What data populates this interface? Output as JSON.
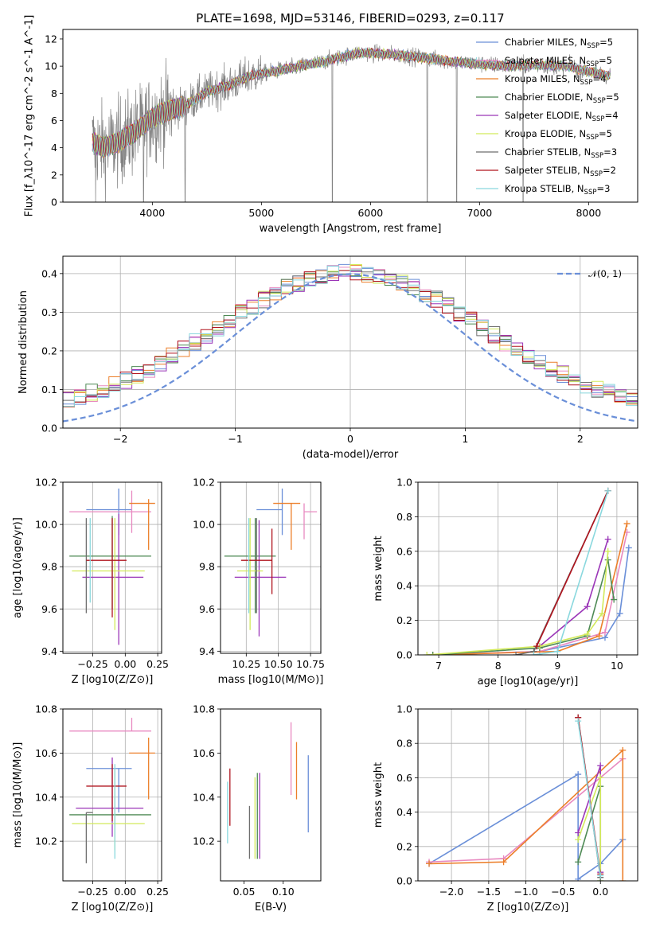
{
  "figure": {
    "title": "PLATE=1698, MJD=53146, FIBERID=0293, z=0.117"
  },
  "models": [
    {
      "name": "Chabrier MILES",
      "n": "5",
      "color": "#6a8fd8"
    },
    {
      "name": "Salpeter MILES",
      "n": "5",
      "color": "#e889c0"
    },
    {
      "name": "Kroupa MILES",
      "n": "4",
      "color": "#ec7f2a"
    },
    {
      "name": "Chabrier ELODIE",
      "n": "5",
      "color": "#4e8a55"
    },
    {
      "name": "Salpeter ELODIE",
      "n": "4",
      "color": "#9b36b8"
    },
    {
      "name": "Kroupa ELODIE",
      "n": "5",
      "color": "#d2ea5a"
    },
    {
      "name": "Chabrier STELIB",
      "n": "3",
      "color": "#6e6e6e"
    },
    {
      "name": "Salpeter STELIB",
      "n": "2",
      "color": "#b0141e"
    },
    {
      "name": "Kroupa STELIB",
      "n": "3",
      "color": "#8ad8de"
    }
  ],
  "chart_data": [
    {
      "id": "spectrum",
      "type": "line",
      "xlabel": "wavelength [Angstrom, rest frame]",
      "ylabel": "Flux [f_λ10^-17 erg cm^-2 s^-1 A^-1]",
      "xlim": [
        3180,
        8450
      ],
      "ylim": [
        0,
        12.7
      ],
      "xticks": [
        4000,
        5000,
        6000,
        7000,
        8000
      ],
      "yticks": [
        0,
        2,
        4,
        6,
        8,
        10,
        12
      ],
      "grid": false,
      "legend": "right",
      "data_range_x": [
        3450,
        8200
      ],
      "continuum_points": [
        [
          3450,
          4.4
        ],
        [
          3550,
          4.0
        ],
        [
          3650,
          4.3
        ],
        [
          3720,
          4.6
        ],
        [
          3850,
          5.2
        ],
        [
          4000,
          6.2
        ],
        [
          4100,
          6.6
        ],
        [
          4300,
          7.1
        ],
        [
          4500,
          8.1
        ],
        [
          4700,
          8.6
        ],
        [
          4900,
          9.3
        ],
        [
          5100,
          9.6
        ],
        [
          5300,
          9.9
        ],
        [
          5500,
          10.2
        ],
        [
          5700,
          10.6
        ],
        [
          5900,
          11.0
        ],
        [
          6100,
          10.9
        ],
        [
          6300,
          10.8
        ],
        [
          6500,
          10.6
        ],
        [
          6700,
          10.4
        ],
        [
          6900,
          10.2
        ],
        [
          7100,
          10.1
        ],
        [
          7300,
          10.0
        ],
        [
          7500,
          10.1
        ],
        [
          7800,
          10.0
        ],
        [
          8000,
          9.6
        ],
        [
          8200,
          9.3
        ]
      ],
      "strong_absorption_x": [
        3480,
        3920,
        4300,
        5650,
        6520,
        6790,
        7400
      ],
      "data_color": "#808080"
    },
    {
      "id": "residuals",
      "type": "histogram",
      "xlabel": "(data-model)/error",
      "ylabel": "Normed distribution",
      "xlim": [
        -2.5,
        2.5
      ],
      "ylim": [
        0,
        0.445
      ],
      "xticks": [
        -2,
        -1,
        0,
        1,
        2
      ],
      "yticks": [
        0.0,
        0.1,
        0.2,
        0.3,
        0.4
      ],
      "grid": true,
      "legend": "top-right",
      "reference_curve": {
        "label": "𝒩(0, 1)",
        "mean": 0,
        "sigma": 1,
        "color": "#6a8fd8"
      },
      "bin_width": 0.1
    },
    {
      "id": "age-vs-Z",
      "type": "errorbar",
      "xlabel": "Z [log10(Z/Z⊙)]",
      "ylabel": "age [log10(age/yr)]",
      "xlim": [
        -0.48,
        0.28
      ],
      "ylim": [
        9.39,
        10.2
      ],
      "xticks": [
        -0.25,
        0.0,
        0.25
      ],
      "yticks": [
        9.4,
        9.6,
        9.8,
        10.0,
        10.2
      ],
      "grid": true,
      "points": [
        {
          "model": "Chabrier MILES",
          "x": -0.05,
          "xerr": [
            0.25,
            0.1
          ],
          "y": 10.07,
          "yerr": [
            0.12,
            0.1
          ]
        },
        {
          "model": "Salpeter MILES",
          "x": 0.05,
          "xerr": [
            0.48,
            0.15
          ],
          "y": 10.06,
          "yerr": [
            0.1,
            0.1
          ]
        },
        {
          "model": "Kroupa MILES",
          "x": 0.18,
          "xerr": [
            0.15,
            0.05
          ],
          "y": 10.1,
          "yerr": [
            0.22,
            0.02
          ]
        },
        {
          "model": "Chabrier ELODIE",
          "x": -0.1,
          "xerr": [
            0.33,
            0.3
          ],
          "y": 9.85,
          "yerr": [
            0.25,
            0.19
          ]
        },
        {
          "model": "Salpeter ELODIE",
          "x": -0.05,
          "xerr": [
            0.28,
            0.19
          ],
          "y": 9.75,
          "yerr": [
            0.32,
            0.3
          ]
        },
        {
          "model": "Kroupa ELODIE",
          "x": -0.08,
          "xerr": [
            0.33,
            0.23
          ],
          "y": 9.78,
          "yerr": [
            0.28,
            0.25
          ]
        },
        {
          "model": "Chabrier STELIB",
          "x": -0.3,
          "xerr": [
            0.0,
            0.0
          ],
          "y": 9.78,
          "yerr": [
            0.2,
            0.25
          ]
        },
        {
          "model": "Salpeter STELIB",
          "x": -0.1,
          "xerr": [
            0.2,
            0.11
          ],
          "y": 9.83,
          "yerr": [
            0.27,
            0.2
          ]
        },
        {
          "model": "Kroupa STELIB",
          "x": -0.27,
          "xerr": [
            0.0,
            0.0
          ],
          "y": 9.93,
          "yerr": [
            0.3,
            0.1
          ]
        }
      ]
    },
    {
      "id": "age-vs-mass",
      "type": "errorbar",
      "xlabel": "mass [log10(M/M⊙)]",
      "ylabel": "",
      "xlim": [
        10.05,
        10.83
      ],
      "ylim": [
        9.39,
        10.2
      ],
      "xticks": [
        10.25,
        10.5,
        10.75
      ],
      "yticks": [
        9.4,
        9.6,
        9.8,
        10.0,
        10.2
      ],
      "grid": true,
      "points": [
        {
          "model": "Chabrier MILES",
          "x": 10.53,
          "xerr": [
            0.2,
            0.0
          ],
          "y": 10.07,
          "yerr": [
            0.12,
            0.1
          ]
        },
        {
          "model": "Salpeter MILES",
          "x": 10.7,
          "xerr": [
            0.0,
            0.1
          ],
          "y": 10.06,
          "yerr": [
            0.13,
            0.04
          ]
        },
        {
          "model": "Kroupa MILES",
          "x": 10.6,
          "xerr": [
            0.14,
            0.07
          ],
          "y": 10.1,
          "yerr": [
            0.22,
            0.0
          ]
        },
        {
          "model": "Chabrier ELODIE",
          "x": 10.32,
          "xerr": [
            0.24,
            0.16
          ],
          "y": 9.85,
          "yerr": [
            0.27,
            0.18
          ]
        },
        {
          "model": "Salpeter ELODIE",
          "x": 10.35,
          "xerr": [
            0.19,
            0.21
          ],
          "y": 9.75,
          "yerr": [
            0.28,
            0.27
          ]
        },
        {
          "model": "Kroupa ELODIE",
          "x": 10.28,
          "xerr": [
            0.1,
            0.1
          ],
          "y": 9.78,
          "yerr": [
            0.28,
            0.25
          ]
        },
        {
          "model": "Chabrier STELIB",
          "x": 10.33,
          "xerr": [
            0.0,
            0.0
          ],
          "y": 9.78,
          "yerr": [
            0.2,
            0.25
          ]
        },
        {
          "model": "Salpeter STELIB",
          "x": 10.45,
          "xerr": [
            0.24,
            0.0
          ],
          "y": 9.83,
          "yerr": [
            0.16,
            0.15
          ]
        },
        {
          "model": "Kroupa STELIB",
          "x": 10.27,
          "xerr": [
            0.0,
            0.0
          ],
          "y": 9.93,
          "yerr": [
            0.35,
            0.1
          ]
        }
      ]
    },
    {
      "id": "massweight-vs-age",
      "type": "line",
      "xlabel": "age [log10(age/yr)]",
      "ylabel": "mass weight",
      "xlim": [
        6.65,
        10.35
      ],
      "ylim": [
        0.0,
        1.0
      ],
      "xticks": [
        7,
        8,
        9,
        10
      ],
      "yticks": [
        0.0,
        0.2,
        0.4,
        0.6,
        0.8,
        1.0
      ],
      "grid": true,
      "series": [
        {
          "model": "Chabrier MILES",
          "x": [
            6.9,
            8.7,
            9.8,
            10.05,
            10.2
          ],
          "y": [
            0.0,
            0.02,
            0.1,
            0.24,
            0.62
          ]
        },
        {
          "model": "Salpeter MILES",
          "x": [
            6.9,
            8.7,
            9.8,
            10.17
          ],
          "y": [
            0.0,
            0.02,
            0.13,
            0.71
          ]
        },
        {
          "model": "Kroupa MILES",
          "x": [
            6.9,
            9.0,
            9.7,
            10.17
          ],
          "y": [
            0.0,
            0.02,
            0.11,
            0.76
          ]
        },
        {
          "model": "Chabrier ELODIE",
          "x": [
            6.9,
            8.7,
            9.5,
            9.85,
            9.95
          ],
          "y": [
            0.0,
            0.04,
            0.11,
            0.55,
            0.32
          ]
        },
        {
          "model": "Salpeter ELODIE",
          "x": [
            8.7,
            9.5,
            9.85
          ],
          "y": [
            0.05,
            0.28,
            0.67
          ]
        },
        {
          "model": "Kroupa ELODIE",
          "x": [
            6.8,
            8.7,
            9.5,
            9.75,
            9.85
          ],
          "y": [
            0.0,
            0.05,
            0.12,
            0.24,
            0.6
          ]
        },
        {
          "model": "Chabrier STELIB",
          "x": [
            8.3,
            8.6,
            9.85
          ],
          "y": [
            0.0,
            0.02,
            0.95
          ]
        },
        {
          "model": "Salpeter STELIB",
          "x": [
            8.65,
            9.85
          ],
          "y": [
            0.05,
            0.95
          ]
        },
        {
          "model": "Kroupa STELIB",
          "x": [
            8.6,
            9.0,
            9.85
          ],
          "y": [
            0.0,
            0.02,
            0.95
          ]
        }
      ]
    },
    {
      "id": "mass-vs-Z",
      "type": "errorbar",
      "xlabel": "Z [log10(Z/Z⊙)]",
      "ylabel": "mass [log10(M/M⊙)]",
      "xlim": [
        -0.48,
        0.28
      ],
      "ylim": [
        10.02,
        10.8
      ],
      "xticks": [
        -0.25,
        0.0,
        0.25
      ],
      "yticks": [
        10.2,
        10.4,
        10.6,
        10.8
      ],
      "grid": true,
      "points": [
        {
          "model": "Chabrier MILES",
          "x": -0.05,
          "xerr": [
            0.25,
            0.1
          ],
          "y": 10.53,
          "yerr": [
            0.2,
            0.0
          ]
        },
        {
          "model": "Salpeter MILES",
          "x": 0.05,
          "xerr": [
            0.48,
            0.15
          ],
          "y": 10.7,
          "yerr": [
            0.0,
            0.06
          ]
        },
        {
          "model": "Kroupa MILES",
          "x": 0.18,
          "xerr": [
            0.15,
            0.05
          ],
          "y": 10.6,
          "yerr": [
            0.21,
            0.07
          ]
        },
        {
          "model": "Chabrier ELODIE",
          "x": -0.1,
          "xerr": [
            0.33,
            0.3
          ],
          "y": 10.32,
          "yerr": [
            0.0,
            0.0
          ]
        },
        {
          "model": "Salpeter ELODIE",
          "x": -0.1,
          "xerr": [
            0.28,
            0.24
          ],
          "y": 10.35,
          "yerr": [
            0.13,
            0.23
          ]
        },
        {
          "model": "Kroupa ELODIE",
          "x": -0.08,
          "xerr": [
            0.33,
            0.23
          ],
          "y": 10.28,
          "yerr": [
            0.12,
            0.25
          ]
        },
        {
          "model": "Chabrier STELIB",
          "x": -0.3,
          "xerr": [
            0.0,
            0.05
          ],
          "y": 10.33,
          "yerr": [
            0.23,
            0.0
          ]
        },
        {
          "model": "Salpeter STELIB",
          "x": -0.1,
          "xerr": [
            0.2,
            0.11
          ],
          "y": 10.45,
          "yerr": [
            0.16,
            0.1
          ]
        },
        {
          "model": "Kroupa STELIB",
          "x": -0.08,
          "xerr": [
            0.0,
            0.0
          ],
          "y": 10.27,
          "yerr": [
            0.15,
            0.28
          ]
        }
      ]
    },
    {
      "id": "mass-vs-EBV",
      "type": "errorbar",
      "xlabel": "E(B-V)",
      "ylabel": "",
      "xlim": [
        0.02,
        0.148
      ],
      "ylim": [
        10.02,
        10.8
      ],
      "xticks": [
        0.05,
        0.1
      ],
      "yticks": [
        10.2,
        10.4,
        10.6,
        10.8
      ],
      "grid": false,
      "points": [
        {
          "model": "Chabrier MILES",
          "x": 0.132,
          "xerr": [
            0.0,
            0.0
          ],
          "y": 10.41,
          "yerr": [
            0.17,
            0.18
          ]
        },
        {
          "model": "Salpeter MILES",
          "x": 0.11,
          "xerr": [
            0.0,
            0.0
          ],
          "y": 10.57,
          "yerr": [
            0.16,
            0.17
          ]
        },
        {
          "model": "Kroupa MILES",
          "x": 0.117,
          "xerr": [
            0.0,
            0.0
          ],
          "y": 10.52,
          "yerr": [
            0.13,
            0.13
          ]
        },
        {
          "model": "Chabrier ELODIE",
          "x": 0.067,
          "xerr": [
            0.0,
            0.0
          ],
          "y": 10.32,
          "yerr": [
            0.2,
            0.19
          ]
        },
        {
          "model": "Salpeter ELODIE",
          "x": 0.07,
          "xerr": [
            0.0,
            0.0
          ],
          "y": 10.33,
          "yerr": [
            0.21,
            0.18
          ]
        },
        {
          "model": "Kroupa ELODIE",
          "x": 0.064,
          "xerr": [
            0.0,
            0.0
          ],
          "y": 10.3,
          "yerr": [
            0.18,
            0.19
          ]
        },
        {
          "model": "Chabrier STELIB",
          "x": 0.057,
          "xerr": [
            0.0,
            0.0
          ],
          "y": 10.24,
          "yerr": [
            0.12,
            0.12
          ]
        },
        {
          "model": "Salpeter STELIB",
          "x": 0.032,
          "xerr": [
            0.0,
            0.0
          ],
          "y": 10.4,
          "yerr": [
            0.13,
            0.13
          ]
        },
        {
          "model": "Kroupa STELIB",
          "x": 0.029,
          "xerr": [
            0.0,
            0.0
          ],
          "y": 10.33,
          "yerr": [
            0.14,
            0.14
          ]
        }
      ]
    },
    {
      "id": "massweight-vs-Z",
      "type": "line",
      "xlabel": "Z [log10(Z/Z⊙)]",
      "ylabel": "mass weight",
      "xlim": [
        -2.45,
        0.5
      ],
      "ylim": [
        0.0,
        1.0
      ],
      "xticks": [
        -2.0,
        -1.5,
        -1.0,
        -0.5,
        0.0
      ],
      "yticks": [
        0.0,
        0.2,
        0.4,
        0.6,
        0.8,
        1.0
      ],
      "grid": true,
      "series": [
        {
          "model": "Chabrier MILES",
          "x": [
            -2.3,
            -0.3,
            -0.3,
            0.0,
            0.3
          ],
          "y": [
            0.1,
            0.62,
            0.01,
            0.1,
            0.24
          ]
        },
        {
          "model": "Salpeter MILES",
          "x": [
            -2.3,
            -1.3,
            0.3
          ],
          "y": [
            0.11,
            0.13,
            0.71
          ]
        },
        {
          "model": "Kroupa MILES",
          "x": [
            -2.3,
            -1.3,
            0.3,
            0.3
          ],
          "y": [
            0.1,
            0.11,
            0.76,
            0.0
          ]
        },
        {
          "model": "Chabrier ELODIE",
          "x": [
            -0.3,
            0.0,
            0.0
          ],
          "y": [
            0.11,
            0.55,
            0.0
          ]
        },
        {
          "model": "Salpeter ELODIE",
          "x": [
            -0.3,
            0.0,
            0.0
          ],
          "y": [
            0.28,
            0.67,
            0.05
          ]
        },
        {
          "model": "Kroupa ELODIE",
          "x": [
            -0.3,
            0.0,
            0.0
          ],
          "y": [
            0.24,
            0.6,
            0.0
          ]
        },
        {
          "model": "Chabrier STELIB",
          "x": [
            -0.3,
            0.0
          ],
          "y": [
            0.95,
            0.02
          ]
        },
        {
          "model": "Salpeter STELIB",
          "x": [
            -0.3,
            0.0
          ],
          "y": [
            0.95,
            0.04
          ]
        },
        {
          "model": "Kroupa STELIB",
          "x": [
            -0.3,
            0.0
          ],
          "y": [
            0.93,
            0.03
          ]
        }
      ]
    }
  ]
}
